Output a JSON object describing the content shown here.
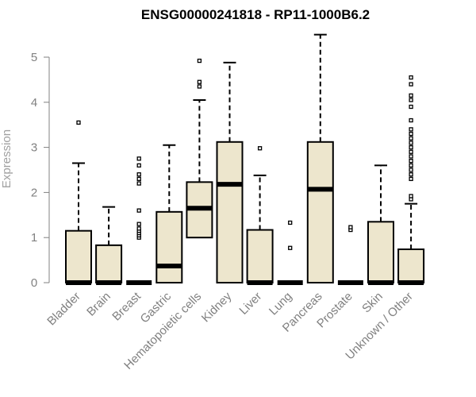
{
  "chart_data": {
    "type": "box",
    "title": "ENSG00000241818 - RP11-1000B6.2",
    "xlabel": "",
    "ylabel": "Expression",
    "ylim": [
      0,
      5.6
    ],
    "yticks": [
      0,
      1,
      2,
      3,
      4,
      5
    ],
    "grid": false,
    "box_fill": "#ede6cd",
    "categories": [
      "Bladder",
      "Brain",
      "Breast",
      "Gastric",
      "Hematopoietic cells",
      "Kidney",
      "Liver",
      "Lung",
      "Pancreas",
      "Prostate",
      "Skin",
      "Unknown / Other"
    ],
    "boxes": [
      {
        "min": 0,
        "q1": 0,
        "median": 0,
        "q3": 1.15,
        "max": 2.65,
        "outliers": [
          3.55
        ]
      },
      {
        "min": 0,
        "q1": 0,
        "median": 0,
        "q3": 0.83,
        "max": 1.68,
        "outliers": []
      },
      {
        "min": 0,
        "q1": 0,
        "median": 0,
        "q3": 0,
        "max": 0,
        "outliers": [
          1.0,
          1.05,
          1.1,
          1.15,
          1.2,
          1.3,
          1.6,
          2.2,
          2.3,
          2.4,
          2.6,
          2.75
        ]
      },
      {
        "min": 0,
        "q1": 0,
        "median": 0.37,
        "q3": 1.57,
        "max": 3.05,
        "outliers": []
      },
      {
        "min": 0,
        "q1": 1.0,
        "median": 1.65,
        "q3": 2.23,
        "max": 4.05,
        "outliers": [
          4.35,
          4.45,
          4.92
        ]
      },
      {
        "min": 0,
        "q1": 0,
        "median": 2.18,
        "q3": 3.12,
        "max": 4.88,
        "outliers": []
      },
      {
        "min": 0,
        "q1": 0,
        "median": 0,
        "q3": 1.17,
        "max": 2.38,
        "outliers": [
          2.98
        ]
      },
      {
        "min": 0,
        "q1": 0,
        "median": 0,
        "q3": 0,
        "max": 0,
        "outliers": [
          0.77,
          1.33
        ]
      },
      {
        "min": 0,
        "q1": 0,
        "median": 2.07,
        "q3": 3.12,
        "max": 5.5,
        "outliers": []
      },
      {
        "min": 0,
        "q1": 0,
        "median": 0,
        "q3": 0,
        "max": 0,
        "outliers": [
          1.17,
          1.23
        ]
      },
      {
        "min": 0,
        "q1": 0,
        "median": 0,
        "q3": 1.35,
        "max": 2.6,
        "outliers": []
      },
      {
        "min": 0,
        "q1": 0,
        "median": 0,
        "q3": 0.74,
        "max": 1.75,
        "outliers": [
          1.85,
          1.92,
          2.3,
          2.4,
          2.5,
          2.6,
          2.7,
          2.8,
          2.9,
          3.0,
          3.1,
          3.2,
          3.3,
          3.4,
          3.6,
          3.9,
          4.05,
          4.15,
          4.4,
          4.55
        ]
      }
    ]
  }
}
